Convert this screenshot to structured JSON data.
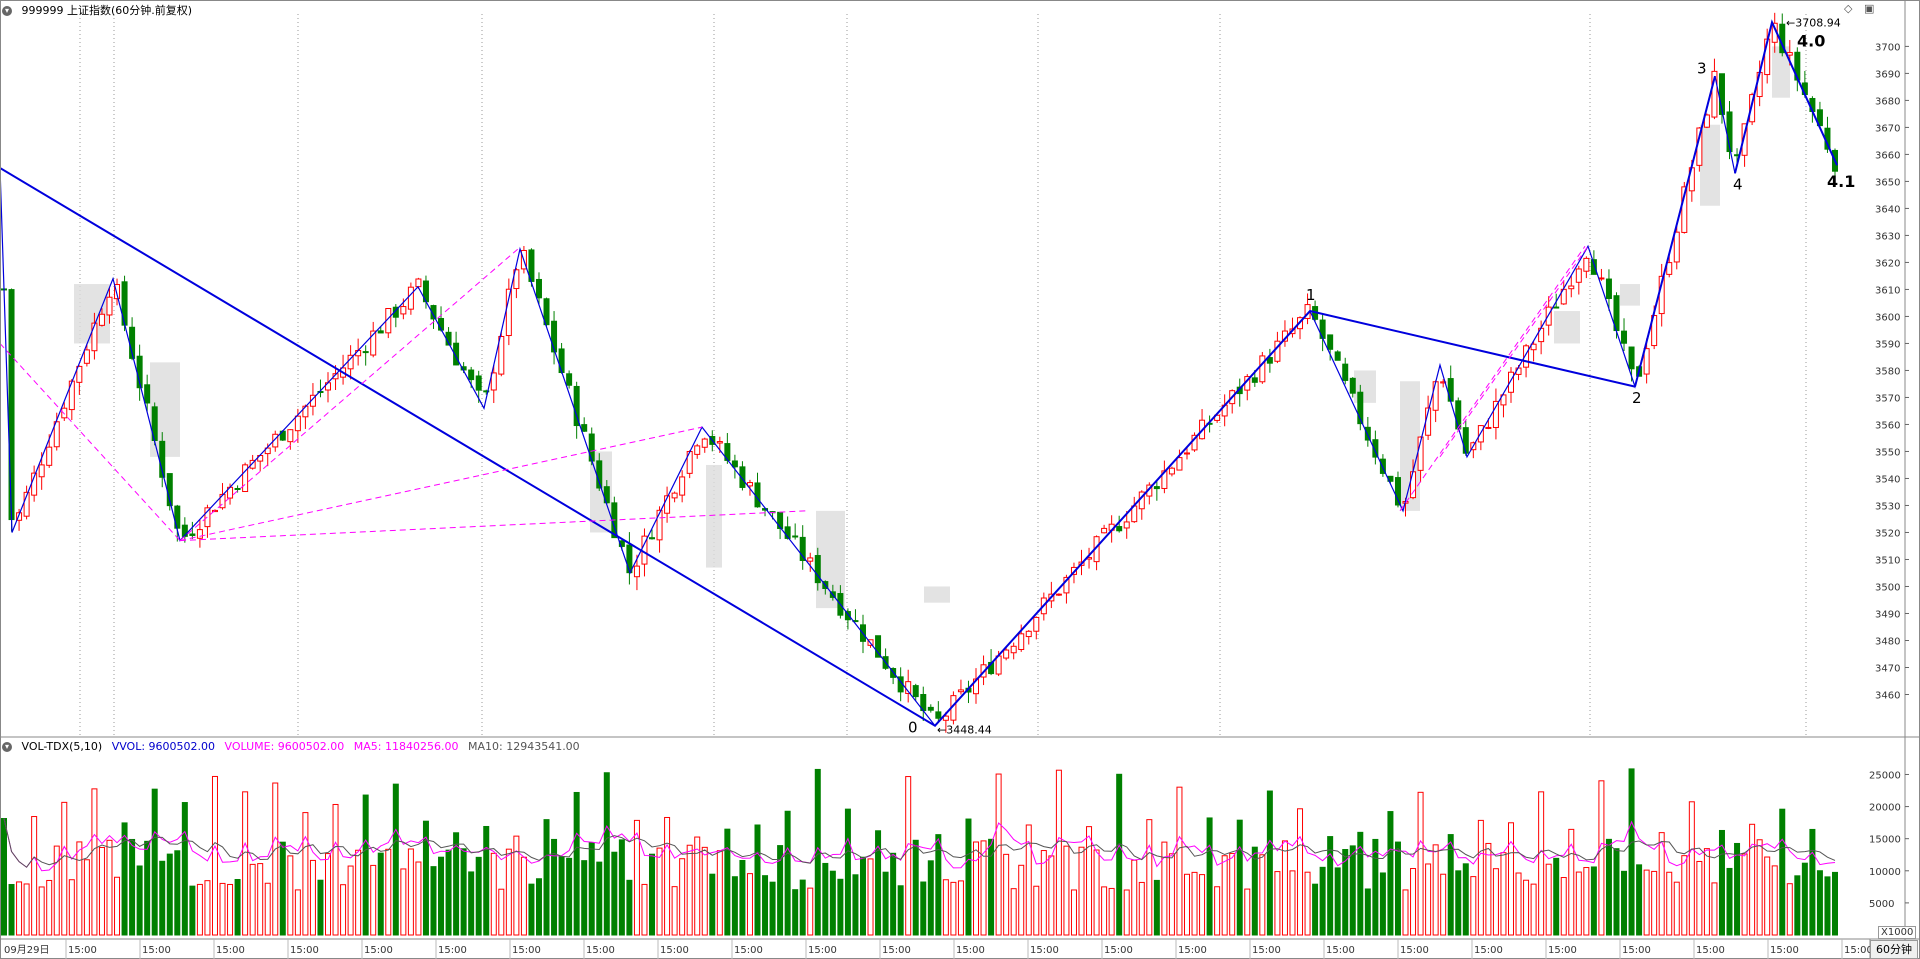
{
  "header": {
    "title": "999999 上证指数(60分钟.前复权)"
  },
  "volume_header": {
    "indicator": "VOL-TDX(5,10)",
    "vvol": "VVOL: 9600502.00",
    "volume": "VOLUME: 9600502.00",
    "ma5": "MA5: 11840256.00",
    "ma10": "MA10: 12943541.00"
  },
  "bottom_bar": {
    "first_date": "09月29日",
    "time_label": "15:00",
    "period_tab": "60分钟",
    "scale_tag": "X1000"
  },
  "annotations": {
    "high_price": "3708.94",
    "low_price": "3448.44",
    "wave_labels": [
      "0",
      "1",
      "2",
      "3",
      "4",
      "4.0",
      "4.1"
    ]
  },
  "colors": {
    "up": "#ff0000",
    "down": "#008000",
    "wave_line": "#0000dd",
    "dash_line": "#ff00ff",
    "ma5": "#ff00ff",
    "ma10": "#555555",
    "box": "#dcdcdc"
  },
  "chart_data": [
    {
      "type": "candlestick",
      "title": "999999 上证指数(60分钟.前复权)",
      "price_axis_ticks": [
        3460,
        3470,
        3480,
        3490,
        3500,
        3510,
        3520,
        3530,
        3540,
        3550,
        3560,
        3570,
        3580,
        3590,
        3600,
        3610,
        3620,
        3630,
        3640,
        3650,
        3660,
        3670,
        3680,
        3690,
        3700
      ],
      "ylim": [
        3445,
        3712
      ],
      "high": 3708.94,
      "low": 3448.44,
      "wave_points": [
        {
          "label": "",
          "price": 3655
        },
        {
          "label": "",
          "price": 3520
        },
        {
          "label": "",
          "price": 3614
        },
        {
          "label": "",
          "price": 3517
        },
        {
          "label": "",
          "price": 3611
        },
        {
          "label": "",
          "price": 3566
        },
        {
          "label": "",
          "price": 3625
        },
        {
          "label": "",
          "price": 3505
        },
        {
          "label": "",
          "price": 3559
        },
        {
          "label": "0",
          "price": 3448.44
        },
        {
          "label": "1",
          "price": 3602
        },
        {
          "label": "",
          "price": 3528
        },
        {
          "label": "",
          "price": 3582
        },
        {
          "label": "",
          "price": 3548
        },
        {
          "label": "",
          "price": 3626
        },
        {
          "label": "2",
          "price": 3574
        },
        {
          "label": "3",
          "price": 3689
        },
        {
          "label": "4",
          "price": 3653
        },
        {
          "label": "4.0",
          "price": 3708.94
        },
        {
          "label": "4.1",
          "price": 3656
        }
      ]
    },
    {
      "type": "bar",
      "title": "VOL-TDX(5,10)",
      "unit": "X1000",
      "y_axis_ticks": [
        5000,
        10000,
        15000,
        20000,
        25000
      ],
      "ylim": [
        0,
        28500
      ],
      "series": [
        {
          "name": "VOLUME",
          "last": 9600502.0
        },
        {
          "name": "MA5",
          "last": 11840256.0
        },
        {
          "name": "MA10",
          "last": 12943541.0
        }
      ]
    }
  ]
}
